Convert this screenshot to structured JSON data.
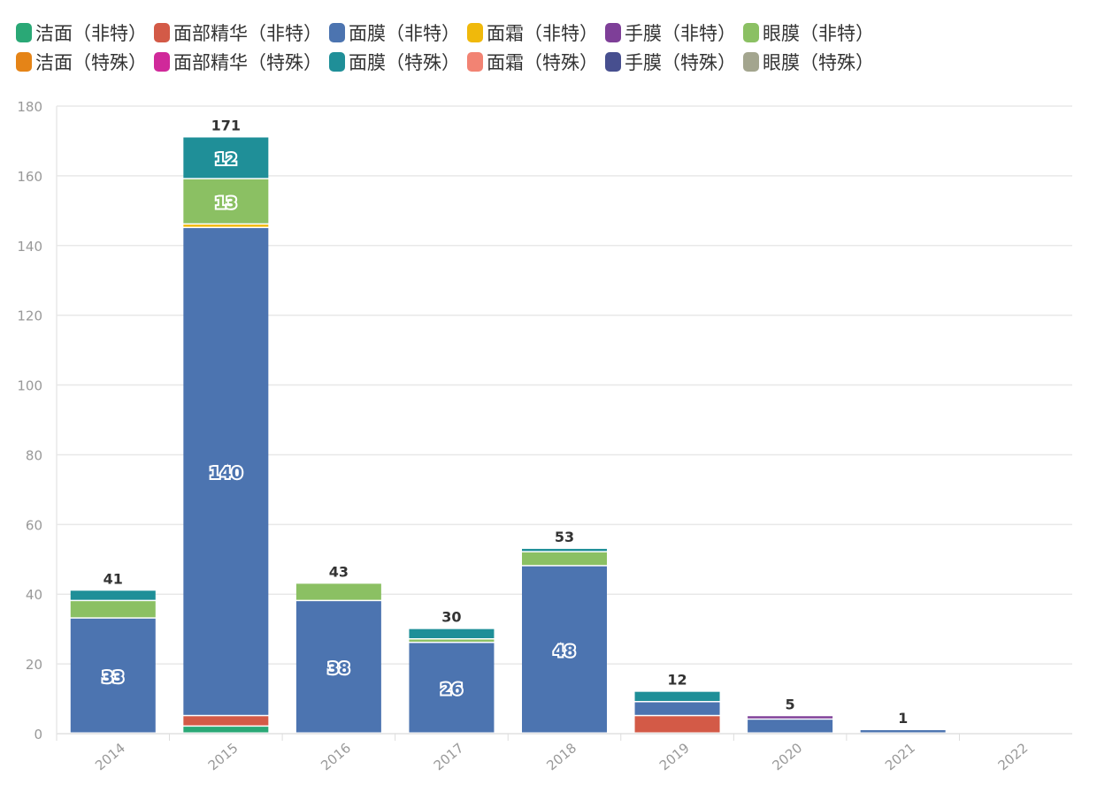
{
  "chart_data": {
    "type": "bar",
    "stacked": true,
    "title": "",
    "xlabel": "",
    "ylabel": "",
    "ylim": [
      0,
      180
    ],
    "yticks": [
      0,
      20,
      40,
      60,
      80,
      100,
      120,
      140,
      160,
      180
    ],
    "grid": true,
    "legend_placement": "top",
    "categories": [
      "2014",
      "2015",
      "2016",
      "2017",
      "2018",
      "2019",
      "2020",
      "2021",
      "2022"
    ],
    "totals": [
      41,
      171,
      43,
      30,
      53,
      12,
      5,
      1,
      0
    ],
    "series": [
      {
        "name": "洁面（非特）",
        "color": "#2aa876",
        "values": [
          0,
          2,
          0,
          0,
          0,
          0,
          0,
          0,
          0
        ]
      },
      {
        "name": "面部精华（非特）",
        "color": "#d35a47",
        "values": [
          0,
          3,
          0,
          0,
          0,
          5,
          0,
          0,
          0
        ]
      },
      {
        "name": "面膜（非特）",
        "color": "#4c74b0",
        "values": [
          33,
          140,
          38,
          26,
          48,
          4,
          4,
          1,
          0
        ]
      },
      {
        "name": "面霜（非特）",
        "color": "#f0b90b",
        "values": [
          0,
          1,
          0,
          0,
          0,
          0,
          0,
          0,
          0
        ]
      },
      {
        "name": "手膜（非特）",
        "color": "#7e3f98",
        "values": [
          0,
          0,
          0,
          0,
          0,
          0,
          1,
          0,
          0
        ]
      },
      {
        "name": "眼膜（非特）",
        "color": "#8bc063",
        "values": [
          5,
          13,
          5,
          1,
          4,
          0,
          0,
          0,
          0
        ]
      },
      {
        "name": "洁面（特殊）",
        "color": "#e58417",
        "values": [
          0,
          0,
          0,
          0,
          0,
          0,
          0,
          0,
          0
        ]
      },
      {
        "name": "面部精华（特殊）",
        "color": "#d0299a",
        "values": [
          0,
          0,
          0,
          0,
          0,
          0,
          0,
          0,
          0
        ]
      },
      {
        "name": "面膜（特殊）",
        "color": "#1f8f98",
        "values": [
          3,
          12,
          0,
          3,
          1,
          3,
          0,
          0,
          0
        ]
      },
      {
        "name": "面霜（特殊）",
        "color": "#f28373",
        "values": [
          0,
          0,
          0,
          0,
          0,
          0,
          0,
          0,
          0
        ]
      },
      {
        "name": "手膜（特殊）",
        "color": "#474f8f",
        "values": [
          0,
          0,
          0,
          0,
          0,
          0,
          0,
          0,
          0
        ]
      },
      {
        "name": "眼膜（特殊）",
        "color": "#a3a58e",
        "values": [
          0,
          0,
          0,
          0,
          0,
          0,
          0,
          0,
          0
        ]
      }
    ]
  }
}
